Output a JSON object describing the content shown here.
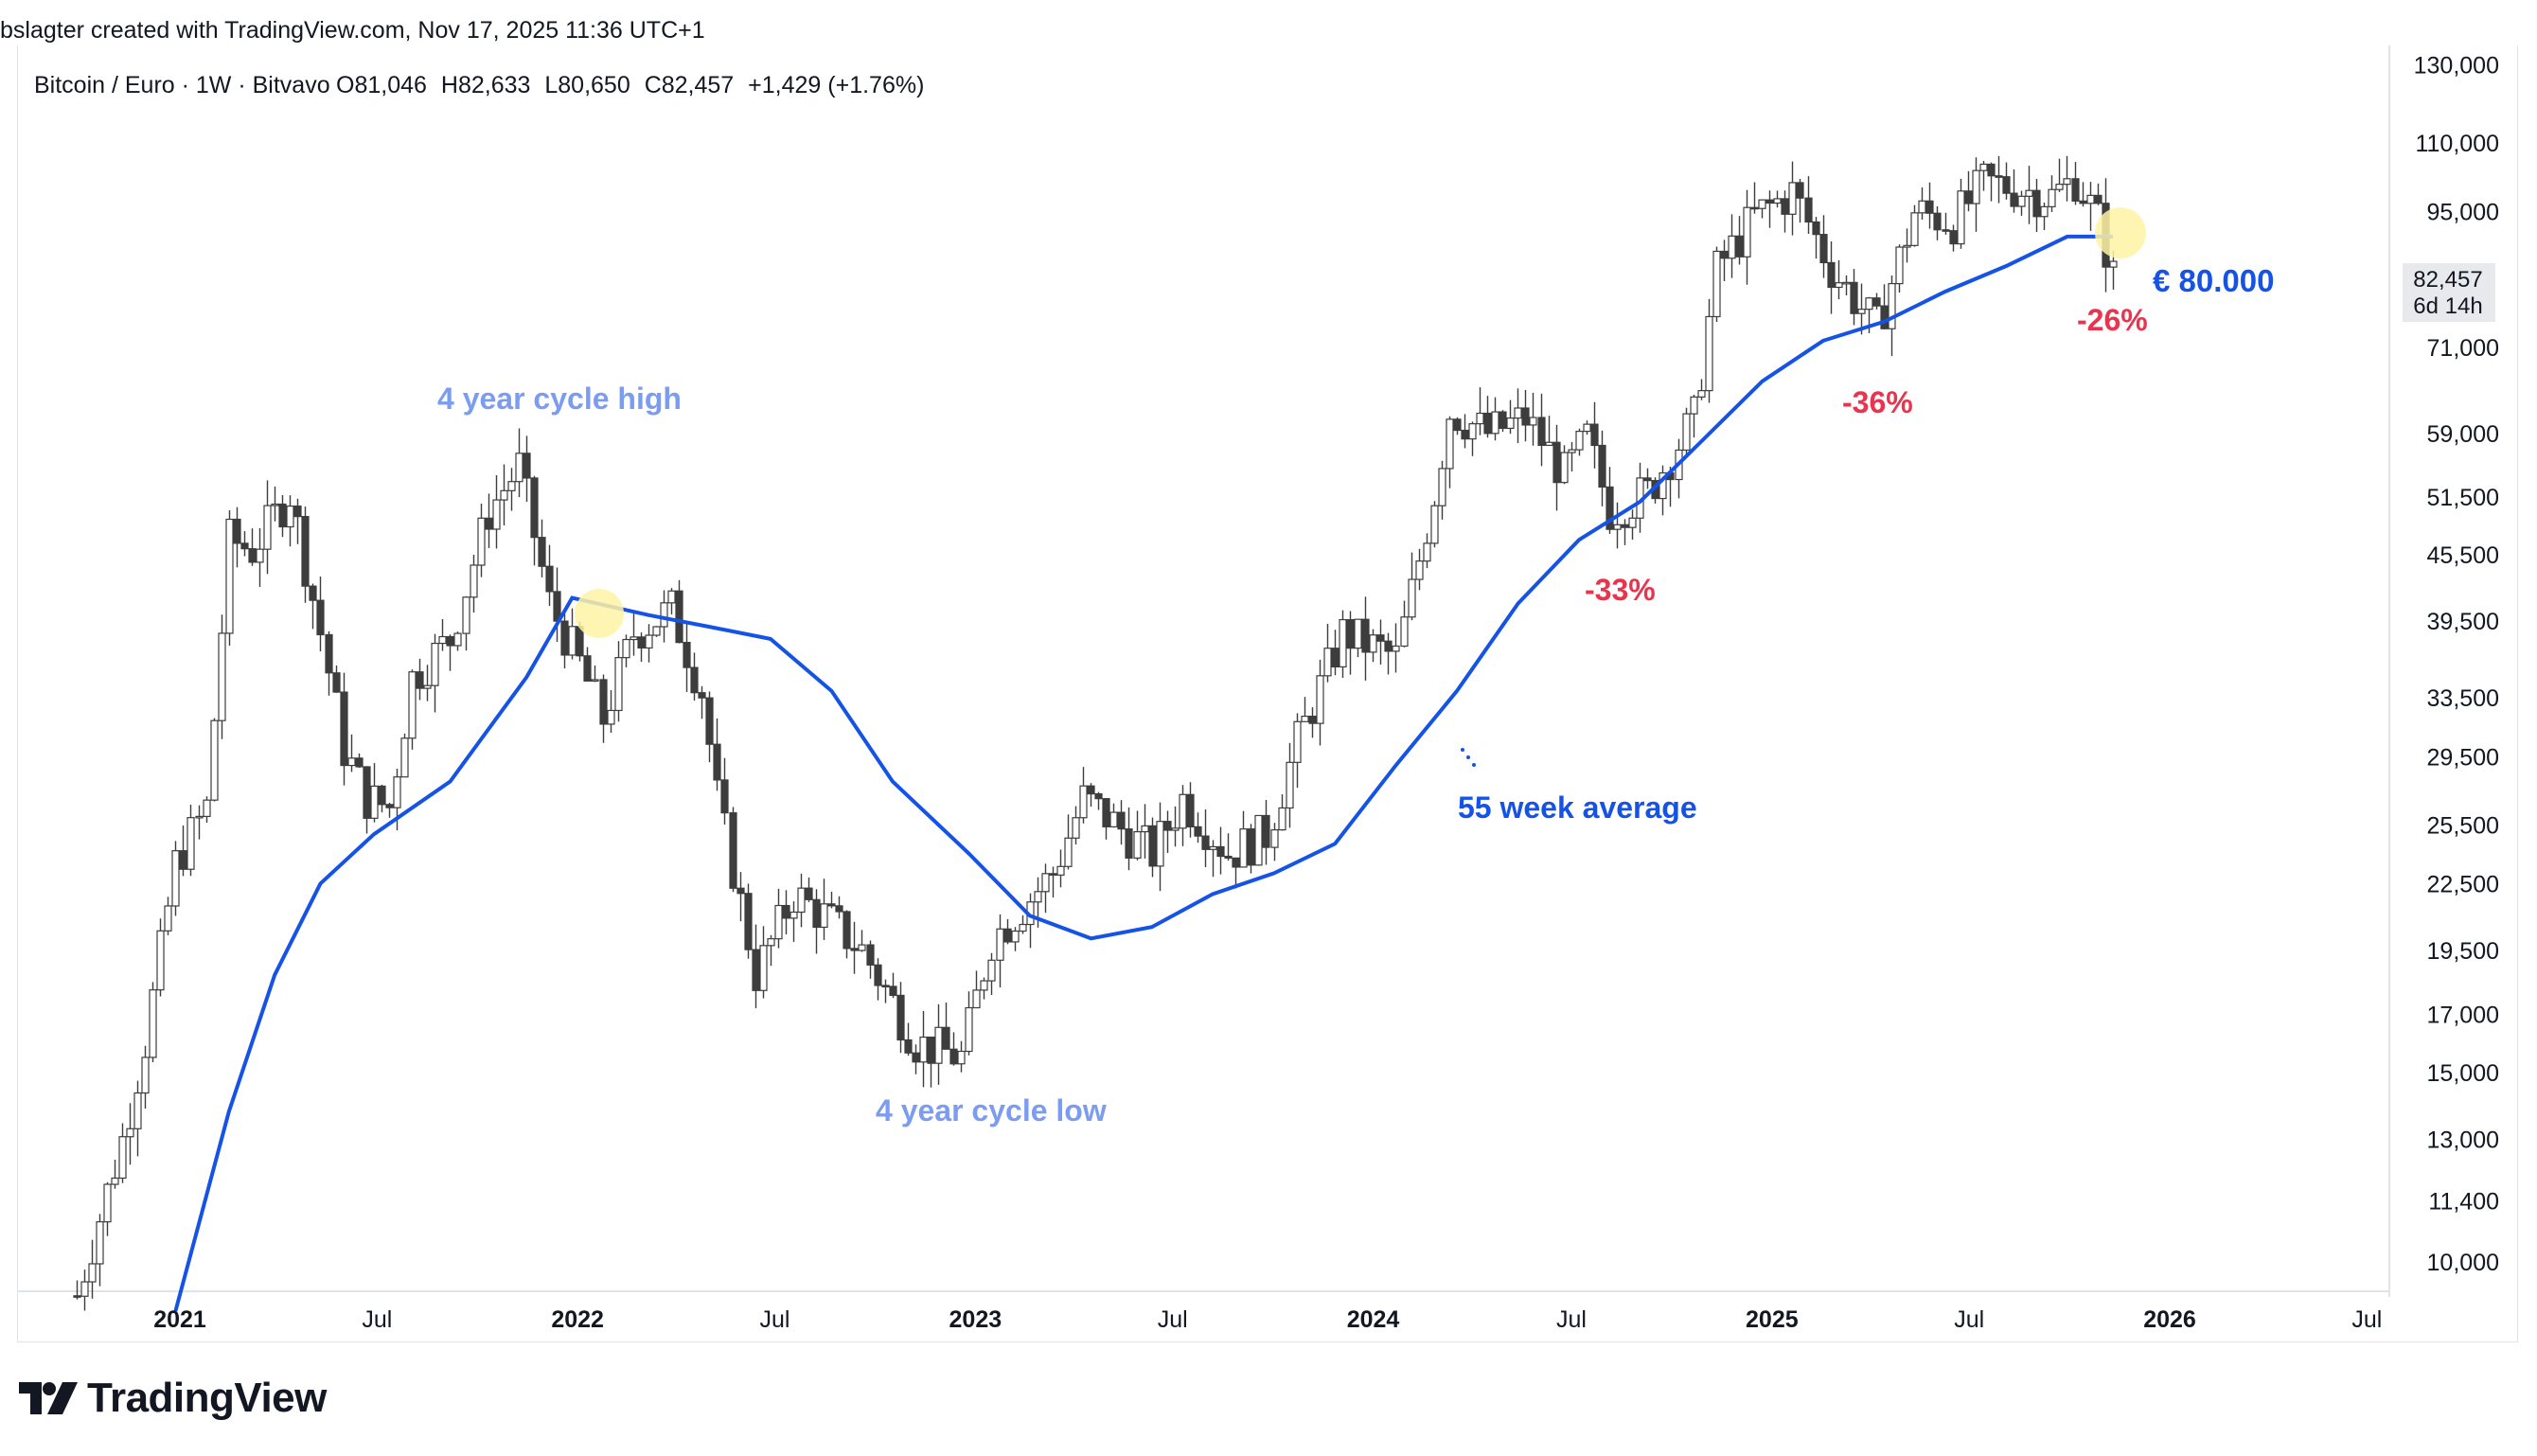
{
  "header": {
    "credit": "bslagter created with TradingView.com, Nov 17, 2025 11:36 UTC+1"
  },
  "legend": {
    "symbol": "Bitcoin / Euro · 1W · Bitvavo",
    "open": "81,046",
    "high": "82,633",
    "low": "80,650",
    "close": "82,457",
    "change": "+1,429 (+1.76%)"
  },
  "last_price": {
    "value": "82,457",
    "countdown": "6d 14h"
  },
  "annotations": {
    "cycle_high": "4 year cycle high",
    "cycle_low": "4 year cycle low",
    "ma_label": "55 week average",
    "drawdown_1": "-33%",
    "drawdown_2": "-36%",
    "drawdown_3": "-26%",
    "target": "€ 80.000"
  },
  "brand": {
    "name": "TradingView"
  },
  "colors": {
    "up": "#ffffff",
    "down": "#3d3d3d",
    "ma": "#1553e6",
    "annotation": "#7b9cf0",
    "drawdown": "#e8344d",
    "highlight": "#fff3a6",
    "axis_text": "#131722"
  },
  "chart_data": {
    "type": "candlestick",
    "scale": "log",
    "ylim": [
      9000,
      135000
    ],
    "y_ticks": [
      10000,
      11400,
      13000,
      15000,
      17000,
      19500,
      22500,
      25500,
      29500,
      33500,
      39500,
      45500,
      51500,
      59000,
      71000,
      82457,
      95000,
      110000,
      130000
    ],
    "y_tick_labels": [
      "10,000",
      "11,400",
      "13,000",
      "15,000",
      "17,000",
      "19,500",
      "22,500",
      "25,500",
      "29,500",
      "33,500",
      "39,500",
      "45,500",
      "51,500",
      "59,000",
      "71,000",
      "82,457",
      "95,000",
      "110,000",
      "130,000"
    ],
    "x_ticks": [
      "2021",
      "Jul",
      "2022",
      "Jul",
      "2023",
      "Jul",
      "2024",
      "Jul",
      "2025",
      "Jul",
      "2026",
      "Jul"
    ],
    "x_tick_dates": [
      "2021-01-01",
      "2021-07-01",
      "2022-01-01",
      "2022-07-01",
      "2023-01-01",
      "2023-07-01",
      "2024-01-01",
      "2024-07-01",
      "2025-01-01",
      "2025-07-01",
      "2026-01-01",
      "2026-07-01"
    ],
    "series": [
      {
        "name": "Bitcoin / Euro 1W",
        "interval": "1W",
        "dates": [
          "2020-09-28",
          "2020-11-09",
          "2020-11-30",
          "2020-12-28",
          "2021-01-25",
          "2021-02-15",
          "2021-03-08",
          "2021-04-12",
          "2021-05-10",
          "2021-05-31",
          "2021-06-21",
          "2021-07-12",
          "2021-08-02",
          "2021-09-06",
          "2021-10-11",
          "2021-11-08",
          "2021-12-06",
          "2022-01-03",
          "2022-01-24",
          "2022-02-21",
          "2022-03-28",
          "2022-04-25",
          "2022-05-09",
          "2022-06-13",
          "2022-07-18",
          "2022-08-15",
          "2022-09-19",
          "2022-11-07",
          "2022-12-19",
          "2023-01-16",
          "2023-03-13",
          "2023-04-10",
          "2023-06-12",
          "2023-07-10",
          "2023-08-21",
          "2023-09-25",
          "2023-10-23",
          "2023-12-04",
          "2024-01-22",
          "2024-02-26",
          "2024-03-11",
          "2024-04-15",
          "2024-05-20",
          "2024-06-24",
          "2024-07-15",
          "2024-08-05",
          "2024-09-09",
          "2024-10-21",
          "2024-11-11",
          "2024-12-16",
          "2025-01-20",
          "2025-02-24",
          "2025-04-07",
          "2025-05-12",
          "2025-06-16",
          "2025-07-14",
          "2025-08-11",
          "2025-09-15",
          "2025-10-06",
          "2025-10-27",
          "2025-11-10"
        ],
        "close": [
          9300,
          13000,
          16000,
          23500,
          26500,
          47000,
          46000,
          52000,
          38500,
          30000,
          27000,
          26500,
          35000,
          38000,
          50000,
          55000,
          41000,
          36000,
          32000,
          38500,
          40500,
          34000,
          27000,
          18500,
          22000,
          21000,
          19500,
          16000,
          15500,
          20000,
          23000,
          27000,
          24000,
          27000,
          24000,
          25000,
          30500,
          38500,
          36500,
          52000,
          62000,
          59000,
          61000,
          54000,
          58500,
          50000,
          52000,
          61000,
          84000,
          94000,
          99000,
          84000,
          74000,
          95000,
          93000,
          101000,
          100000,
          98000,
          102000,
          93000,
          82457
        ]
      },
      {
        "name": "55 week average",
        "type": "line",
        "dates": [
          "2020-12-28",
          "2021-02-15",
          "2021-03-29",
          "2021-05-10",
          "2021-06-28",
          "2021-09-06",
          "2021-11-15",
          "2021-12-27",
          "2022-03-07",
          "2022-05-02",
          "2022-06-27",
          "2022-08-22",
          "2022-10-17",
          "2022-12-26",
          "2023-02-20",
          "2023-04-17",
          "2023-06-12",
          "2023-08-07",
          "2023-10-02",
          "2023-11-27",
          "2024-01-22",
          "2024-03-18",
          "2024-05-13",
          "2024-07-08",
          "2024-09-02",
          "2024-10-28",
          "2024-12-23",
          "2025-02-17",
          "2025-04-14",
          "2025-06-09",
          "2025-08-04",
          "2025-09-29",
          "2025-11-10"
        ],
        "values": [
          9000,
          13800,
          18500,
          22500,
          25000,
          28000,
          35000,
          41500,
          40000,
          39000,
          38000,
          34000,
          28000,
          24000,
          21000,
          20000,
          20500,
          22000,
          23000,
          24500,
          29000,
          34000,
          41000,
          47000,
          51000,
          58000,
          66000,
          72000,
          75000,
          80000,
          84500,
          90000,
          90000
        ]
      }
    ]
  }
}
